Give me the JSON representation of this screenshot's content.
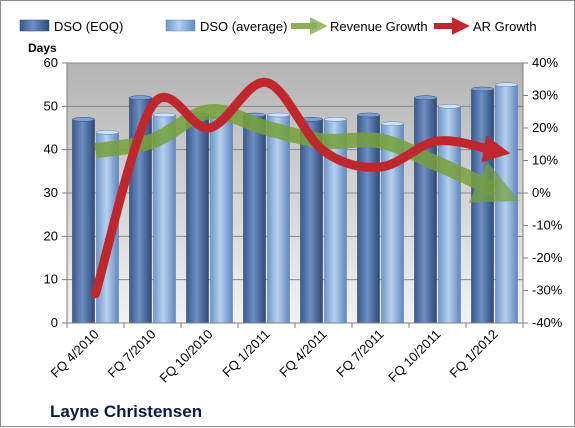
{
  "chart_data": {
    "type": "bar",
    "title": "",
    "company": "Layne Christensen",
    "ylabel": "Days",
    "ylim": [
      0,
      60
    ],
    "yticks": [
      0,
      10,
      20,
      30,
      40,
      50,
      60
    ],
    "y2lim": [
      -40,
      40
    ],
    "y2ticks": [
      "-40%",
      "-30%",
      "-20%",
      "-10%",
      "0%",
      "10%",
      "20%",
      "30%",
      "40%"
    ],
    "y2values": [
      -40,
      -30,
      -20,
      -10,
      0,
      10,
      20,
      30,
      40
    ],
    "categories": [
      "FQ 4/2010",
      "FQ 7/2010",
      "FQ 10/2010",
      "FQ 1/2011",
      "FQ 4/2011",
      "FQ 7/2011",
      "FQ 10/2011",
      "FQ 1/2012"
    ],
    "series": [
      {
        "name": "DSO (EOQ)",
        "type": "bar",
        "axis": "left",
        "color": "#4f6fa3",
        "values": [
          47,
          52,
          48,
          48,
          47,
          48,
          52,
          54
        ]
      },
      {
        "name": "DSO (average)",
        "type": "bar",
        "axis": "left",
        "color": "#8fb4e0",
        "values": [
          44,
          48,
          48,
          48,
          47,
          46,
          50,
          55
        ]
      },
      {
        "name": "Revenue Growth",
        "type": "line",
        "axis": "right",
        "color": "#77a13a",
        "values": [
          13,
          16,
          25,
          20,
          16,
          16,
          9,
          1
        ]
      },
      {
        "name": "AR Growth",
        "type": "line",
        "axis": "right",
        "color": "#c0272d",
        "values": [
          -31,
          27,
          20,
          34,
          13,
          8,
          16,
          13
        ]
      }
    ],
    "grid": true,
    "legend": "top"
  }
}
